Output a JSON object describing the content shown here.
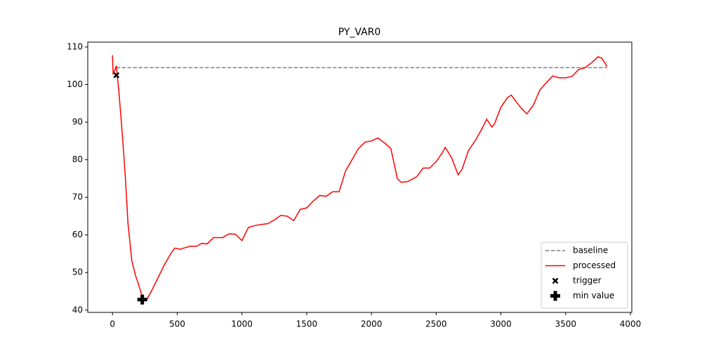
{
  "chart_data": {
    "type": "line",
    "title": "PY_VAR0",
    "xlim": [
      -191,
      4011
    ],
    "ylim": [
      39.4,
      111.3
    ],
    "xticks": [
      0,
      500,
      1000,
      1500,
      2000,
      2500,
      3000,
      3500,
      4000
    ],
    "yticks": [
      40,
      50,
      60,
      70,
      80,
      90,
      100,
      110
    ],
    "legend": "lower right",
    "series": [
      {
        "name": "baseline",
        "color": "#808080",
        "style": "dashed",
        "x": [
          30,
          3820
        ],
        "y": [
          104.5,
          104.5
        ]
      },
      {
        "name": "processed",
        "color": "#ff0000",
        "style": "solid",
        "x": [
          0,
          5,
          20,
          30,
          35,
          50,
          80,
          100,
          120,
          150,
          180,
          200,
          230,
          260,
          300,
          350,
          400,
          450,
          480,
          520,
          550,
          600,
          650,
          690,
          730,
          780,
          850,
          900,
          950,
          1000,
          1050,
          1100,
          1150,
          1200,
          1250,
          1300,
          1350,
          1400,
          1450,
          1500,
          1550,
          1600,
          1650,
          1700,
          1750,
          1800,
          1850,
          1900,
          1950,
          2000,
          2050,
          2100,
          2150,
          2200,
          2230,
          2280,
          2350,
          2400,
          2450,
          2500,
          2550,
          2570,
          2620,
          2670,
          2700,
          2750,
          2800,
          2850,
          2890,
          2930,
          2950,
          3000,
          3050,
          3080,
          3150,
          3200,
          3250,
          3300,
          3350,
          3400,
          3450,
          3500,
          3550,
          3600,
          3650,
          3700,
          3750,
          3780,
          3820
        ],
        "y": [
          107.8,
          103,
          104,
          105,
          103,
          98,
          85,
          75,
          63,
          53,
          49,
          47,
          43.5,
          42.5,
          45,
          48.5,
          52,
          55,
          56.5,
          56.2,
          56.5,
          57,
          57,
          57.8,
          57.6,
          59.3,
          59.3,
          60.3,
          60.2,
          58.5,
          62,
          62.5,
          62.8,
          63,
          64,
          65.2,
          65,
          63.8,
          66.8,
          67.2,
          69,
          70.5,
          70.3,
          71.5,
          71.5,
          77,
          80,
          83,
          84.7,
          85,
          85.8,
          84.5,
          83,
          75,
          74,
          74.2,
          75.5,
          77.8,
          77.8,
          79.5,
          82,
          83.3,
          80.5,
          76,
          77.5,
          82.5,
          85,
          88,
          90.8,
          88.7,
          89.5,
          94,
          96.5,
          97.2,
          94,
          92.2,
          94.5,
          98.5,
          100.5,
          102.3,
          101.8,
          101.8,
          102.2,
          104,
          104.5,
          105.8,
          107.4,
          107,
          104.8
        ]
      },
      {
        "name": "trigger",
        "color": "#000000",
        "marker": "x",
        "x": [
          30
        ],
        "y": [
          102.5
        ]
      },
      {
        "name": "min value",
        "color": "#000000",
        "marker": "P",
        "x": [
          230
        ],
        "y": [
          42.8
        ]
      }
    ]
  }
}
